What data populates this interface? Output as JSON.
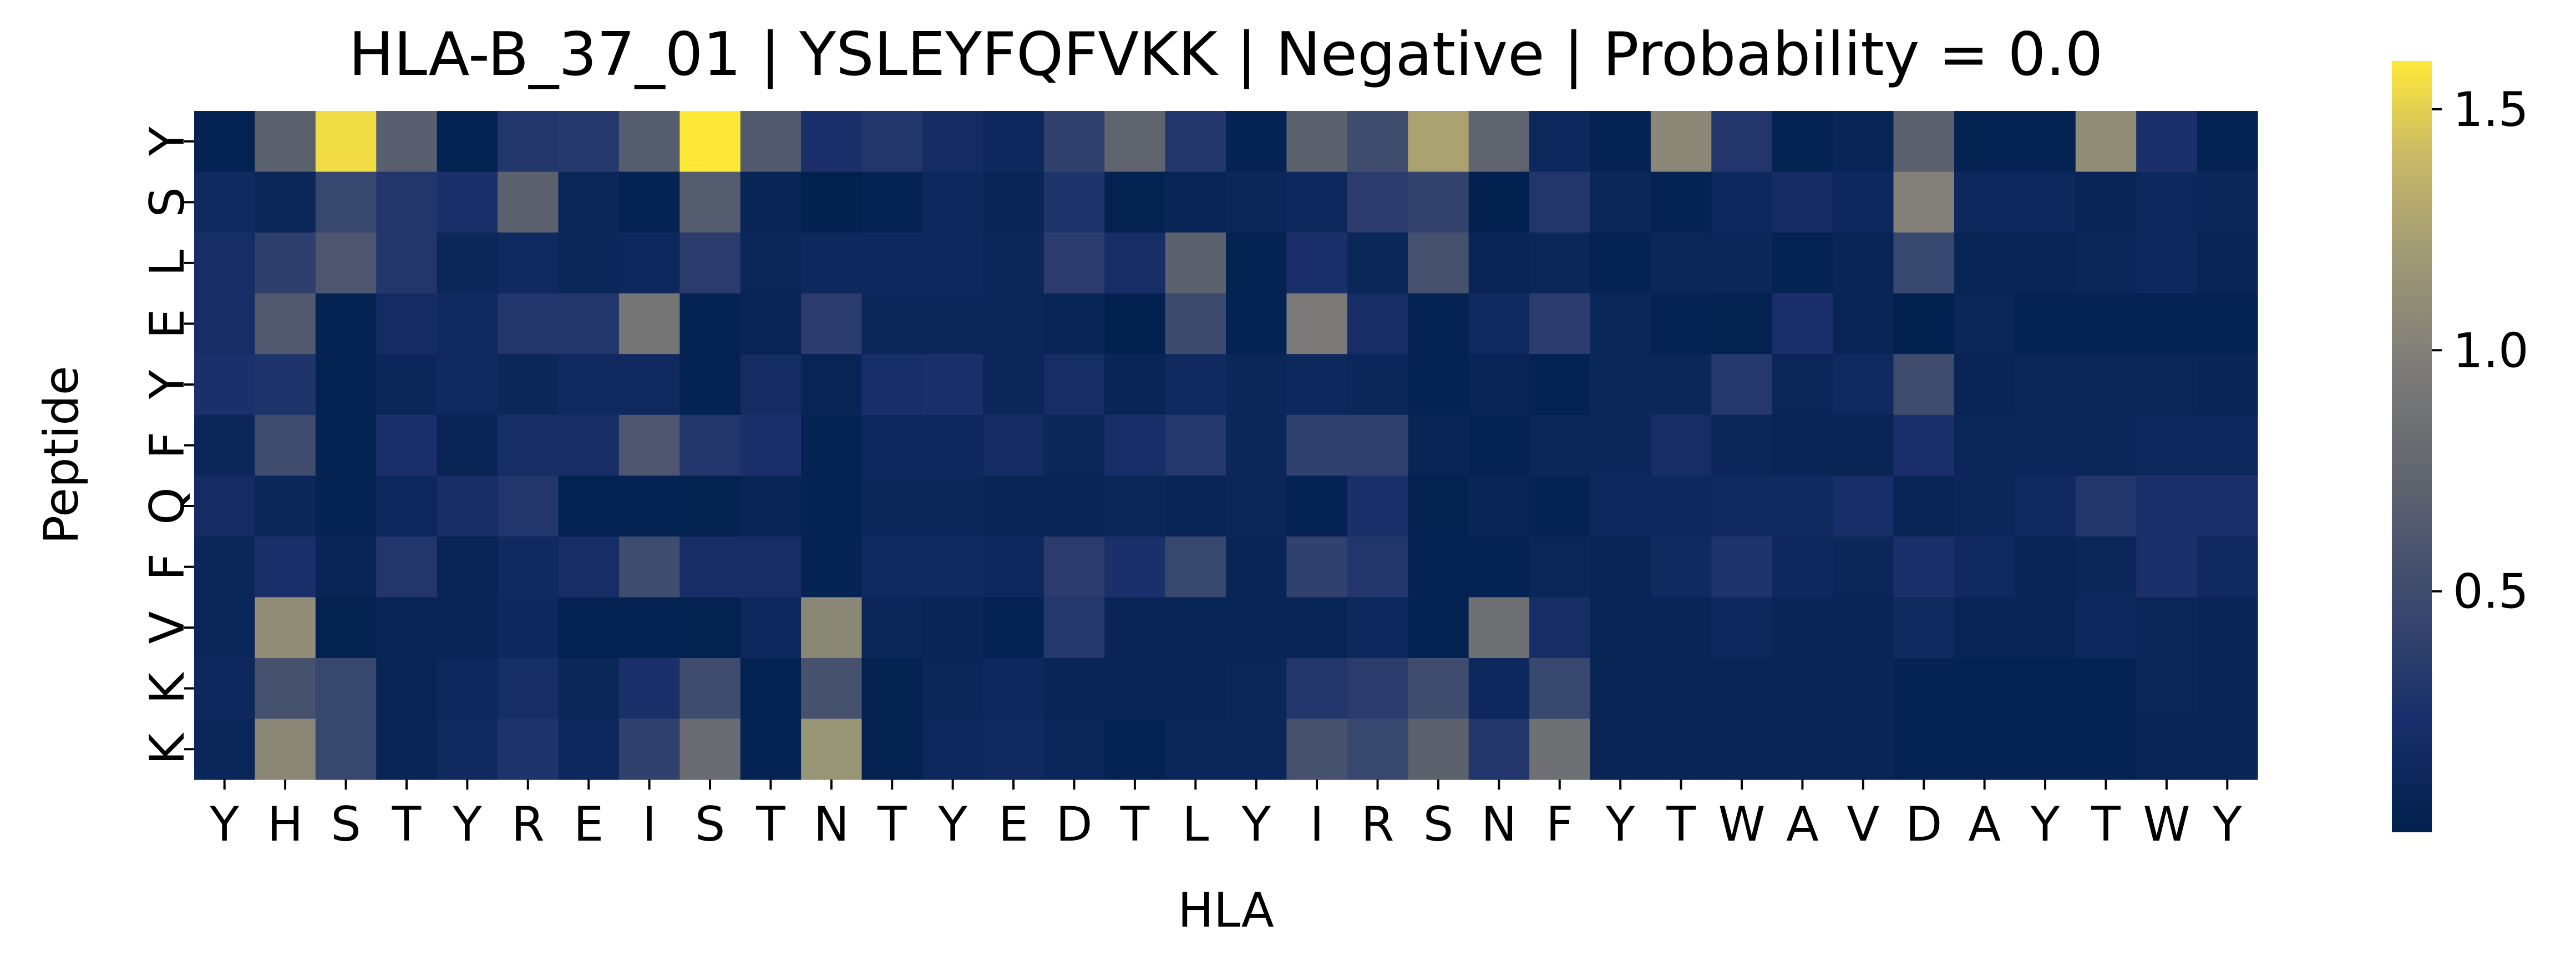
{
  "chart_data": {
    "type": "heatmap",
    "title": "HLA-B_37_01 | YSLEYFQFVKK | Negative | Probability = 0.0",
    "xlabel": "HLA",
    "ylabel": "Peptide",
    "x_categories": [
      "Y",
      "H",
      "S",
      "T",
      "Y",
      "R",
      "E",
      "I",
      "S",
      "T",
      "N",
      "T",
      "Y",
      "E",
      "D",
      "T",
      "L",
      "Y",
      "I",
      "R",
      "S",
      "N",
      "F",
      "Y",
      "T",
      "W",
      "A",
      "V",
      "D",
      "A",
      "Y",
      "T",
      "W",
      "Y"
    ],
    "y_categories": [
      "Y",
      "S",
      "L",
      "E",
      "Y",
      "F",
      "Q",
      "F",
      "V",
      "K",
      "K"
    ],
    "colormap": "cividis",
    "colorbar": {
      "vmin": 0.0,
      "vmax": 1.6,
      "ticks": [
        0.5,
        1.0,
        1.5
      ],
      "tick_labels": [
        "0.5",
        "1.0",
        "1.5"
      ]
    },
    "values": [
      [
        0.05,
        0.7,
        1.55,
        0.68,
        0.05,
        0.3,
        0.32,
        0.65,
        1.6,
        0.62,
        0.25,
        0.3,
        0.18,
        0.12,
        0.4,
        0.72,
        0.3,
        0.05,
        0.7,
        0.5,
        1.25,
        0.72,
        0.12,
        0.05,
        1.05,
        0.3,
        0.05,
        0.08,
        0.7,
        0.05,
        0.05,
        1.1,
        0.25,
        0.05
      ],
      [
        0.15,
        0.1,
        0.45,
        0.3,
        0.25,
        0.7,
        0.1,
        0.05,
        0.65,
        0.08,
        0.02,
        0.05,
        0.12,
        0.08,
        0.28,
        0.03,
        0.08,
        0.1,
        0.12,
        0.35,
        0.42,
        0.02,
        0.3,
        0.1,
        0.05,
        0.12,
        0.18,
        0.12,
        1.0,
        0.12,
        0.12,
        0.08,
        0.12,
        0.1
      ],
      [
        0.2,
        0.38,
        0.6,
        0.3,
        0.1,
        0.15,
        0.1,
        0.12,
        0.35,
        0.1,
        0.12,
        0.12,
        0.12,
        0.1,
        0.35,
        0.2,
        0.7,
        0.05,
        0.25,
        0.1,
        0.55,
        0.08,
        0.1,
        0.05,
        0.1,
        0.1,
        0.05,
        0.08,
        0.45,
        0.08,
        0.08,
        0.1,
        0.12,
        0.08
      ],
      [
        0.2,
        0.62,
        0.05,
        0.18,
        0.15,
        0.3,
        0.3,
        0.9,
        0.05,
        0.08,
        0.35,
        0.1,
        0.1,
        0.1,
        0.08,
        0.02,
        0.48,
        0.05,
        0.95,
        0.2,
        0.05,
        0.15,
        0.35,
        0.1,
        0.05,
        0.03,
        0.25,
        0.08,
        0.02,
        0.1,
        0.05,
        0.05,
        0.05,
        0.05
      ],
      [
        0.25,
        0.28,
        0.05,
        0.1,
        0.15,
        0.1,
        0.15,
        0.15,
        0.05,
        0.18,
        0.08,
        0.22,
        0.25,
        0.1,
        0.2,
        0.08,
        0.15,
        0.1,
        0.12,
        0.1,
        0.05,
        0.08,
        0.05,
        0.1,
        0.1,
        0.32,
        0.1,
        0.15,
        0.5,
        0.08,
        0.1,
        0.1,
        0.1,
        0.08
      ],
      [
        0.1,
        0.5,
        0.05,
        0.25,
        0.08,
        0.2,
        0.2,
        0.6,
        0.3,
        0.25,
        0.05,
        0.12,
        0.12,
        0.18,
        0.1,
        0.22,
        0.32,
        0.1,
        0.4,
        0.4,
        0.08,
        0.05,
        0.1,
        0.1,
        0.2,
        0.1,
        0.08,
        0.08,
        0.25,
        0.1,
        0.1,
        0.1,
        0.12,
        0.12
      ],
      [
        0.18,
        0.1,
        0.05,
        0.12,
        0.2,
        0.3,
        0.05,
        0.05,
        0.03,
        0.08,
        0.05,
        0.1,
        0.1,
        0.08,
        0.08,
        0.1,
        0.08,
        0.1,
        0.05,
        0.25,
        0.03,
        0.08,
        0.05,
        0.12,
        0.12,
        0.15,
        0.15,
        0.22,
        0.08,
        0.1,
        0.15,
        0.3,
        0.25,
        0.25
      ],
      [
        0.1,
        0.25,
        0.08,
        0.3,
        0.08,
        0.15,
        0.2,
        0.5,
        0.2,
        0.2,
        0.05,
        0.15,
        0.15,
        0.12,
        0.35,
        0.25,
        0.45,
        0.08,
        0.4,
        0.3,
        0.05,
        0.05,
        0.1,
        0.08,
        0.15,
        0.28,
        0.12,
        0.1,
        0.25,
        0.15,
        0.08,
        0.1,
        0.25,
        0.15
      ],
      [
        0.1,
        1.1,
        0.03,
        0.08,
        0.08,
        0.12,
        0.05,
        0.05,
        0.03,
        0.12,
        1.05,
        0.1,
        0.08,
        0.05,
        0.32,
        0.08,
        0.08,
        0.08,
        0.08,
        0.12,
        0.05,
        0.85,
        0.2,
        0.08,
        0.08,
        0.12,
        0.08,
        0.08,
        0.15,
        0.08,
        0.08,
        0.12,
        0.1,
        0.08
      ],
      [
        0.12,
        0.55,
        0.45,
        0.08,
        0.12,
        0.2,
        0.1,
        0.25,
        0.5,
        0.05,
        0.55,
        0.03,
        0.1,
        0.12,
        0.08,
        0.08,
        0.08,
        0.1,
        0.3,
        0.35,
        0.5,
        0.12,
        0.45,
        0.08,
        0.08,
        0.08,
        0.08,
        0.08,
        0.05,
        0.05,
        0.05,
        0.05,
        0.1,
        0.08
      ],
      [
        0.1,
        1.05,
        0.45,
        0.08,
        0.15,
        0.28,
        0.12,
        0.4,
        0.8,
        0.05,
        1.15,
        0.03,
        0.12,
        0.15,
        0.1,
        0.05,
        0.1,
        0.1,
        0.55,
        0.45,
        0.7,
        0.3,
        0.85,
        0.08,
        0.08,
        0.08,
        0.08,
        0.08,
        0.05,
        0.05,
        0.05,
        0.05,
        0.08,
        0.08
      ]
    ]
  }
}
